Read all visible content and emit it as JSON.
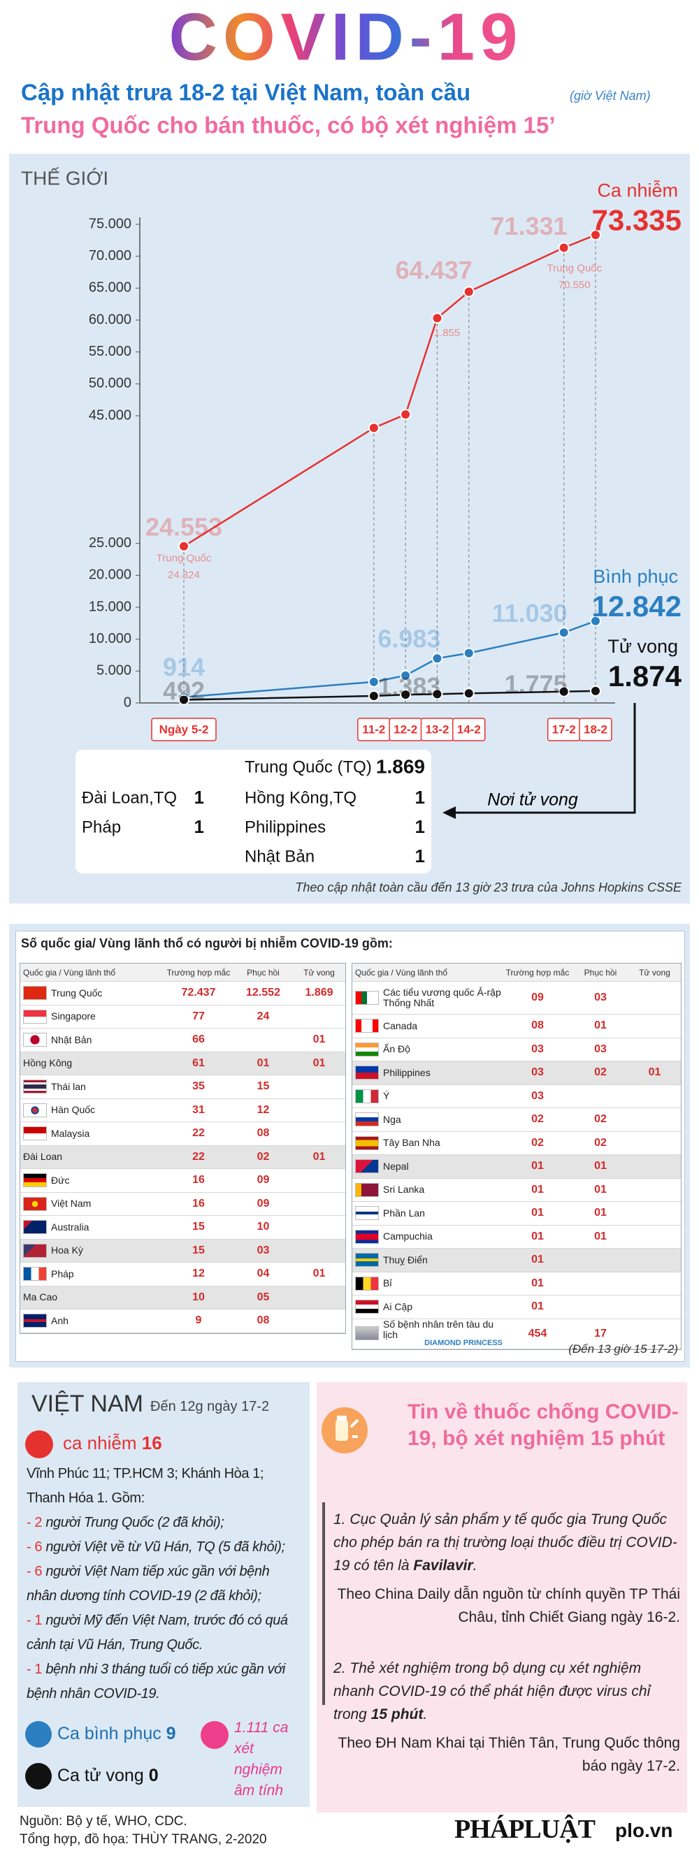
{
  "header": {
    "title": "COVID-19",
    "subtitle": "Cập nhật trưa 18-2 tại Việt Nam, toàn cầu",
    "subtitle_note": "(giờ Việt Nam)",
    "headline": "Trung Quốc cho bán thuốc, có bộ xét nghiệm 15’"
  },
  "chart_data": {
    "type": "line",
    "section_title": "THẾ GIỚI",
    "categories": [
      "Ngày 5-2",
      "11-2",
      "12-2",
      "13-2",
      "14-2",
      "17-2",
      "18-2"
    ],
    "series": [
      {
        "name": "Ca nhiễm",
        "color": "#e6322f",
        "values": [
          24553,
          43100,
          45200,
          60300,
          64437,
          71331,
          73335
        ],
        "value_labels": [
          "24.553",
          null,
          null,
          null,
          "64.437",
          "71.331",
          "73.335"
        ]
      },
      {
        "name": "Bình phục",
        "color": "#2b7fc1",
        "values": [
          914,
          3300,
          4300,
          6983,
          7800,
          11030,
          12842
        ],
        "value_labels": [
          "914",
          null,
          null,
          "6.983",
          null,
          "11.030",
          "12.842"
        ]
      },
      {
        "name": "Tử vong",
        "color": "#111111",
        "values": [
          492,
          1100,
          1300,
          1383,
          1500,
          1775,
          1874
        ],
        "value_labels": [
          "492",
          null,
          null,
          "1.383",
          null,
          "1.775",
          "1.874"
        ]
      }
    ],
    "ylim": [
      0,
      75000
    ],
    "yticks": [
      0,
      {
        "value": 5000,
        "label": "5.000"
      },
      {
        "value": 10000,
        "label": "10.000"
      },
      {
        "value": 15000,
        "label": "15.000"
      },
      {
        "value": 20000,
        "label": "20.000"
      },
      {
        "value": 25000,
        "label": "25.000"
      },
      {
        "value": 45000,
        "label": "45.000"
      },
      {
        "value": 50000,
        "label": "50.000"
      },
      {
        "value": 55000,
        "label": "55.000"
      },
      {
        "value": 60000,
        "label": "60.000"
      },
      {
        "value": 65000,
        "label": "65.000"
      },
      {
        "value": 70000,
        "label": "70.000"
      },
      {
        "value": 75000,
        "label": "75.000"
      }
    ],
    "annotations": [
      [
        "Trung Quốc",
        "24.324"
      ],
      [
        "Trung Quốc",
        "70.550"
      ],
      [
        "1.855"
      ]
    ],
    "death_places": {
      "title": "Nơi tử vong",
      "items": [
        {
          "name": "Trung Quốc (TQ)",
          "count": "1.869"
        },
        {
          "name": "Đài Loan,TQ",
          "count": "1"
        },
        {
          "name": "Hồng Kông,TQ",
          "count": "1"
        },
        {
          "name": "Pháp",
          "count": "1"
        },
        {
          "name": "Philippines",
          "count": "1"
        },
        {
          "name": "Nhật Bản",
          "count": "1"
        }
      ]
    },
    "note": "Theo cập nhật toàn cầu đến 13 giờ 23  trưa của Johns Hopkins CSSE"
  },
  "countries": {
    "title": "Số quốc gia/ Vùng lãnh thổ có người bị nhiễm COVID-19 gồm:",
    "columns": [
      "Quốc gia / Vùng lãnh thổ",
      "Trường hợp mắc",
      "Phục hồi",
      "Tử vong"
    ],
    "left_rows": [
      [
        "Trung Quốc",
        "72.437",
        "12.552",
        "1.869"
      ],
      [
        "Singapore",
        "77",
        "24",
        null
      ],
      [
        "Nhật Bản",
        "66",
        null,
        "01"
      ],
      [
        "Hồng Kông",
        "61",
        "01",
        "01"
      ],
      [
        "Thái lan",
        "35",
        "15",
        null
      ],
      [
        "Hàn Quốc",
        "31",
        "12",
        null
      ],
      [
        "Malaysia",
        "22",
        "08",
        null
      ],
      [
        "Đài Loan",
        "22",
        "02",
        "01"
      ],
      [
        "Đức",
        "16",
        "09",
        null
      ],
      [
        "Việt Nam",
        "16",
        "09",
        null
      ],
      [
        "Australia",
        "15",
        "10",
        null
      ],
      [
        "Hoa Kỳ",
        "15",
        "03",
        null
      ],
      [
        "Pháp",
        "12",
        "04",
        "01"
      ],
      [
        "Ma Cao",
        "10",
        "05",
        null
      ],
      [
        "Anh",
        "9",
        "08",
        null
      ]
    ],
    "right_rows": [
      [
        "Các tiểu vương quốc Ả-rập Thống Nhất",
        "09",
        "03",
        null
      ],
      [
        "Canada",
        "08",
        "01",
        null
      ],
      [
        "Ấn Độ",
        "03",
        "03",
        null
      ],
      [
        "Philippines",
        "03",
        "02",
        "01"
      ],
      [
        "Ý",
        "03",
        null,
        null
      ],
      [
        "Nga",
        "02",
        "02",
        null
      ],
      [
        "Tây Ban Nha",
        "02",
        "02",
        null
      ],
      [
        "Nepal",
        "01",
        "01",
        null
      ],
      [
        "Sri Lanka",
        "01",
        "01",
        null
      ],
      [
        "Phần Lan",
        "01",
        "01",
        null
      ],
      [
        "Campuchia",
        "01",
        "01",
        null
      ],
      [
        "Thuỵ Điển",
        "01",
        null,
        null
      ],
      [
        "Bỉ",
        "01",
        null,
        null
      ],
      [
        "Ai Cập",
        "01",
        null,
        null
      ],
      [
        "Số bệnh nhân trên tàu du lịch",
        "454",
        "17",
        null
      ]
    ],
    "ship_label": "DIAMOND PRINCESS",
    "note": "(Đến 13 giờ 15  17-2)"
  },
  "vietnam": {
    "title": "VIỆT NAM",
    "date": "Đến 12g ngày 17-2",
    "cases_label": "ca nhiễm",
    "cases": "16",
    "summary": "Vĩnh Phúc 11; TP.HCM 3; Khánh Hòa 1; Thanh Hóa 1. Gồm:",
    "items": [
      {
        "count": "- 2",
        "text": "người Trung Quốc (2 đã khỏi);"
      },
      {
        "count": "- 6",
        "text": "người Việt về từ Vũ Hán, TQ (5 đã khỏi);"
      },
      {
        "count": "- 6",
        "text": "người Việt Nam tiếp xúc gần với bệnh nhân dương tính COVID-19 (2 đã khỏi);"
      },
      {
        "count": "- 1",
        "text": "người Mỹ đến Việt Nam, trước đó có quá cảnh tại Vũ Hán, Trung Quốc."
      },
      {
        "count": "- 1",
        "text": "bệnh nhi 3 tháng tuổi có tiếp xúc gần với bệnh nhân COVID-19."
      }
    ],
    "recovered_label": "Ca bình phục",
    "recovered": "9",
    "negative": "1.111 ca xét nghiệm âm tính",
    "deaths_label": "Ca tử vong",
    "deaths": "0"
  },
  "news": {
    "title": "Tin về thuốc chống COVID-19, bộ xét nghiệm 15 phút",
    "items": [
      {
        "text": "1. Cục Quản lý sản phẩm y tế quốc gia Trung Quốc cho phép bán ra thị trường loại thuốc điều trị COVID-19 có tên là ",
        "emphasis": "Favilavir",
        "end": ".",
        "source": "Theo China Daily dẫn nguồn từ chính quyền TP Thái Châu, tỉnh Chiết Giang ngày 16-2."
      },
      {
        "text": "2. Thẻ xét nghiệm trong bộ dụng cụ  xét nghiệm nhanh COVID-19  có thể phát hiện được virus chỉ trong ",
        "emphasis": "15 phút",
        "end": ".",
        "source": "Theo ĐH Nam Khai tại Thiên Tân, Trung Quốc thông báo ngày 17-2."
      }
    ]
  },
  "footer": {
    "source": "Nguồn: Bộ y tế, WHO, CDC.",
    "credit": "Tổng hợp, đồ họa: THÙY TRANG, 2-2020",
    "logo": "PHÁPLUẬT",
    "site": "plo.vn"
  }
}
